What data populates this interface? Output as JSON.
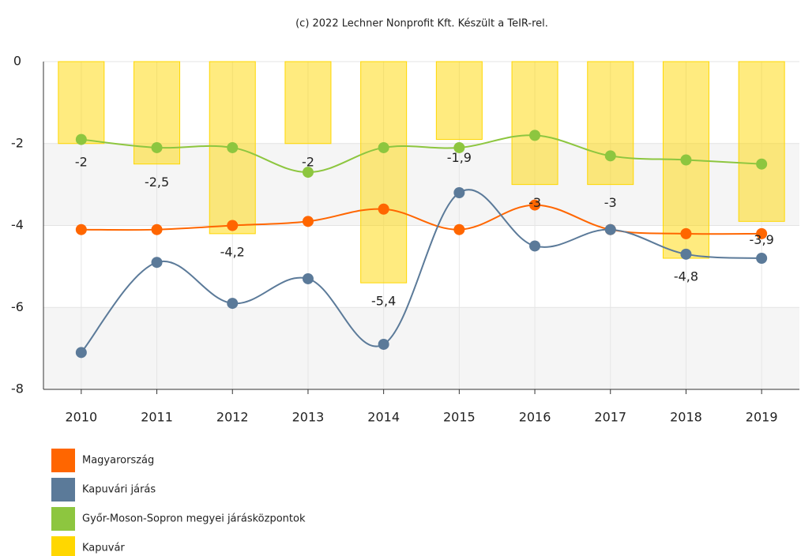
{
  "chart_data": {
    "type": "combo",
    "title": "(c) 2022 Lechner Nonprofit Kft. Készült a TeIR-rel.",
    "categories": [
      "2010",
      "2011",
      "2012",
      "2013",
      "2014",
      "2015",
      "2016",
      "2017",
      "2018",
      "2019"
    ],
    "ylim": [
      -8,
      0
    ],
    "yticks": [
      0,
      -2,
      -4,
      -6,
      -8
    ],
    "grid": true,
    "legend": "bottom-left",
    "series": [
      {
        "name": "Magyarország",
        "type": "line",
        "color": "#ff6600",
        "values": [
          -4.1,
          -4.1,
          -4.0,
          -3.9,
          -3.6,
          -4.1,
          -3.5,
          -4.1,
          -4.2,
          -4.2
        ]
      },
      {
        "name": "Kapuvári járás",
        "type": "line",
        "color": "#5b7a99",
        "values": [
          -7.1,
          -4.9,
          -5.9,
          -5.3,
          -6.9,
          -3.2,
          -4.5,
          -4.1,
          -4.7,
          -4.8
        ]
      },
      {
        "name": "Győr-Moson-Sopron megyei járásközpontok",
        "type": "line",
        "color": "#8dc63f",
        "values": [
          -1.9,
          -2.1,
          -2.1,
          -2.7,
          -2.1,
          -2.1,
          -1.8,
          -2.3,
          -2.4,
          -2.5
        ]
      },
      {
        "name": "Kapuvár",
        "type": "bar",
        "color": "#ffd700",
        "values": [
          -2,
          -2.5,
          -4.2,
          -2,
          -5.4,
          -1.9,
          -3,
          -3,
          -4.8,
          -3.9
        ],
        "value_labels": [
          "-2",
          "-2,5",
          "-4,2",
          "-2",
          "-5,4",
          "-1,9",
          "-3",
          "-3",
          "-4,8",
          "-3,9"
        ]
      }
    ]
  }
}
